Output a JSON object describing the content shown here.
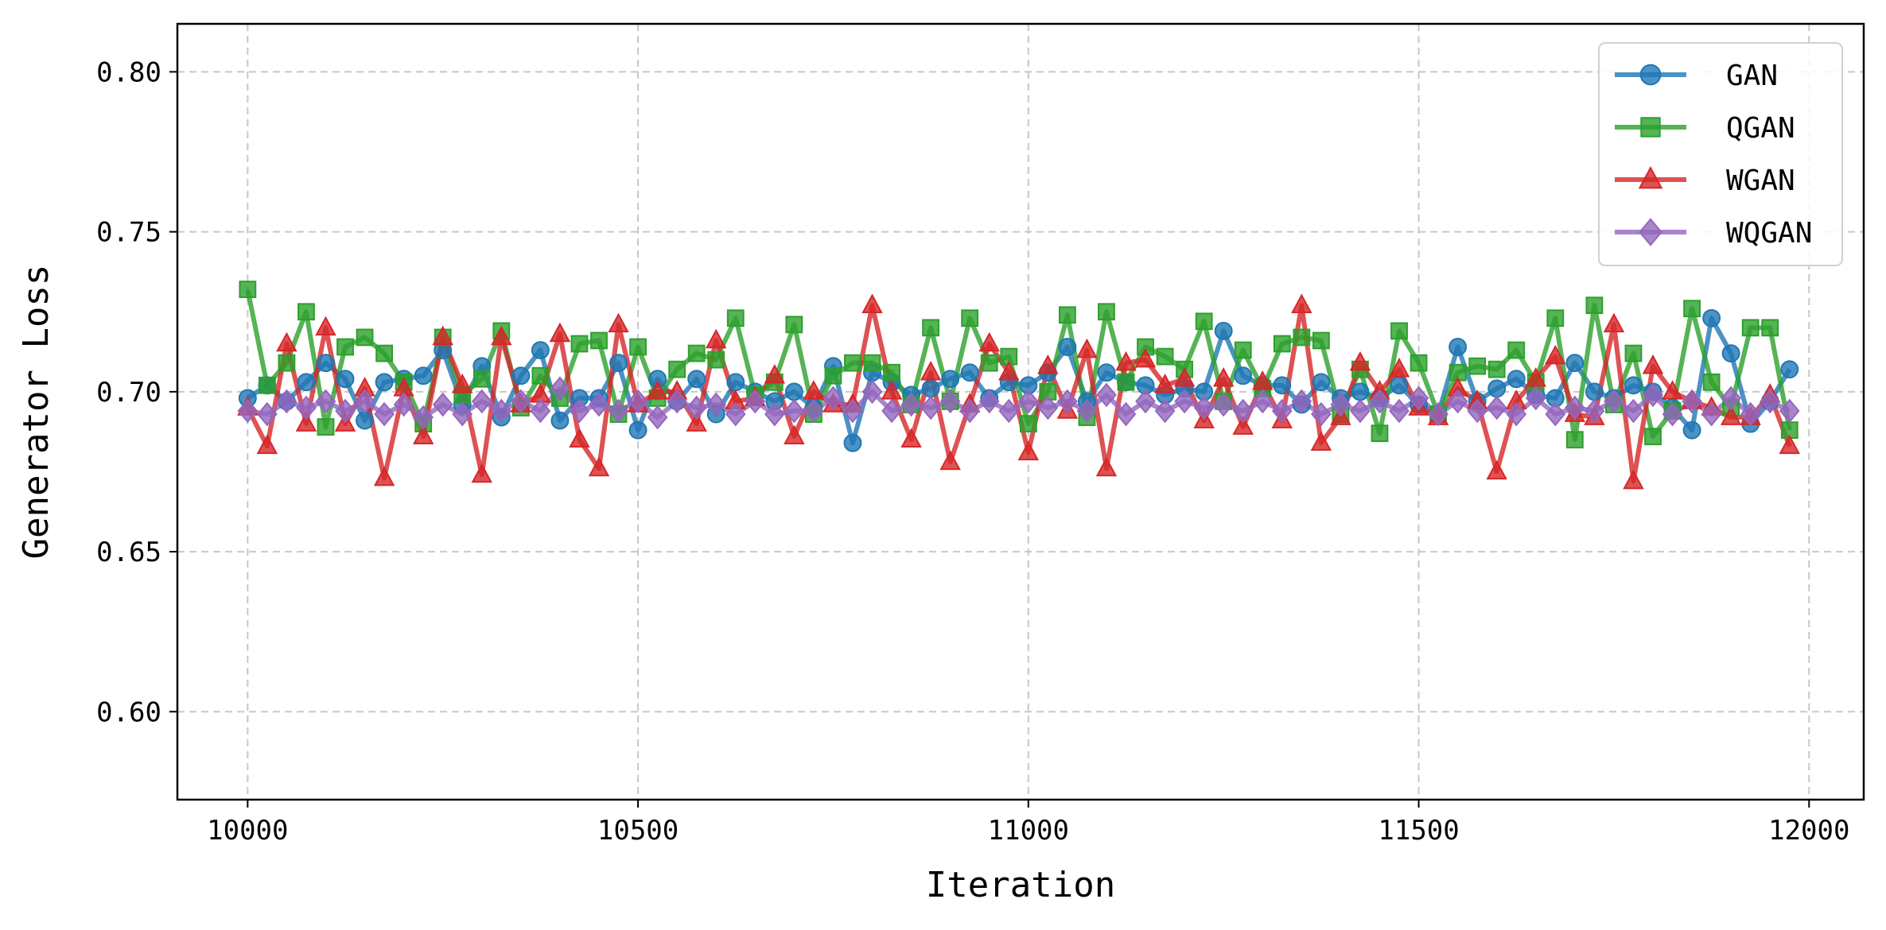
{
  "chart_data": {
    "type": "line",
    "xlabel": "Iteration",
    "ylabel": "Generator Loss",
    "xlim": [
      9910,
      12070
    ],
    "ylim": [
      0.5725,
      0.815
    ],
    "xticks": [
      10000,
      10500,
      11000,
      11500,
      12000
    ],
    "yticks": [
      0.6,
      0.65,
      0.7,
      0.75,
      0.8
    ],
    "grid": true,
    "legend_position": "top-right",
    "x": [
      10000,
      10025,
      10050,
      10075,
      10100,
      10125,
      10150,
      10175,
      10200,
      10225,
      10250,
      10275,
      10300,
      10325,
      10350,
      10375,
      10400,
      10425,
      10450,
      10475,
      10500,
      10525,
      10550,
      10575,
      10600,
      10625,
      10650,
      10675,
      10700,
      10725,
      10750,
      10775,
      10800,
      10825,
      10850,
      10875,
      10900,
      10925,
      10950,
      10975,
      11000,
      11025,
      11050,
      11075,
      11100,
      11125,
      11150,
      11175,
      11200,
      11225,
      11250,
      11275,
      11300,
      11325,
      11350,
      11375,
      11400,
      11425,
      11450,
      11475,
      11500,
      11525,
      11550,
      11575,
      11600,
      11625,
      11650,
      11675,
      11700,
      11725,
      11750,
      11775,
      11800,
      11825,
      11850,
      11875,
      11900,
      11925,
      11950,
      11975
    ],
    "series": [
      {
        "name": "GAN",
        "color": "#1f77b4",
        "marker": "circle",
        "values": [
          0.698,
          0.702,
          0.697,
          0.703,
          0.709,
          0.704,
          0.691,
          0.703,
          0.704,
          0.705,
          0.713,
          0.696,
          0.708,
          0.692,
          0.705,
          0.713,
          0.691,
          0.698,
          0.698,
          0.709,
          0.688,
          0.704,
          0.697,
          0.704,
          0.693,
          0.703,
          0.7,
          0.697,
          0.7,
          0.695,
          0.708,
          0.684,
          0.706,
          0.703,
          0.699,
          0.701,
          0.704,
          0.706,
          0.698,
          0.703,
          0.702,
          0.706,
          0.714,
          0.697,
          0.706,
          0.703,
          0.702,
          0.699,
          0.701,
          0.7,
          0.719,
          0.705,
          0.702,
          0.702,
          0.696,
          0.703,
          0.698,
          0.7,
          0.698,
          0.702,
          0.696,
          0.693,
          0.714,
          0.697,
          0.701,
          0.704,
          0.699,
          0.698,
          0.709,
          0.7,
          0.698,
          0.702,
          0.7,
          0.695,
          0.688,
          0.723,
          0.712,
          0.69,
          0.697,
          0.707
        ]
      },
      {
        "name": "QGAN",
        "color": "#2ca02c",
        "marker": "square",
        "values": [
          0.732,
          0.702,
          0.709,
          0.725,
          0.689,
          0.714,
          0.717,
          0.712,
          0.703,
          0.69,
          0.717,
          0.699,
          0.704,
          0.719,
          0.695,
          0.705,
          0.698,
          0.715,
          0.716,
          0.693,
          0.714,
          0.698,
          0.707,
          0.712,
          0.71,
          0.723,
          0.699,
          0.703,
          0.721,
          0.693,
          0.705,
          0.709,
          0.709,
          0.706,
          0.696,
          0.72,
          0.697,
          0.723,
          0.709,
          0.711,
          0.69,
          0.7,
          0.724,
          0.692,
          0.725,
          0.703,
          0.714,
          0.711,
          0.707,
          0.722,
          0.697,
          0.713,
          0.701,
          0.715,
          0.717,
          0.716,
          0.693,
          0.707,
          0.687,
          0.719,
          0.709,
          0.693,
          0.706,
          0.708,
          0.707,
          0.713,
          0.703,
          0.723,
          0.685,
          0.727,
          0.696,
          0.712,
          0.686,
          0.694,
          0.726,
          0.703,
          0.695,
          0.72,
          0.72,
          0.688
        ]
      },
      {
        "name": "WGAN",
        "color": "#d62728",
        "marker": "triangle",
        "values": [
          0.695,
          0.683,
          0.715,
          0.69,
          0.72,
          0.69,
          0.701,
          0.673,
          0.701,
          0.686,
          0.717,
          0.702,
          0.674,
          0.717,
          0.696,
          0.699,
          0.718,
          0.685,
          0.676,
          0.721,
          0.696,
          0.7,
          0.7,
          0.69,
          0.716,
          0.697,
          0.698,
          0.705,
          0.686,
          0.7,
          0.696,
          0.696,
          0.727,
          0.7,
          0.685,
          0.706,
          0.678,
          0.696,
          0.715,
          0.706,
          0.681,
          0.708,
          0.694,
          0.713,
          0.676,
          0.709,
          0.71,
          0.702,
          0.704,
          0.691,
          0.704,
          0.689,
          0.703,
          0.691,
          0.727,
          0.684,
          0.692,
          0.709,
          0.7,
          0.707,
          0.695,
          0.692,
          0.701,
          0.697,
          0.675,
          0.697,
          0.704,
          0.711,
          0.693,
          0.692,
          0.721,
          0.672,
          0.708,
          0.7,
          0.697,
          0.695,
          0.692,
          0.692,
          0.699,
          0.683
        ]
      },
      {
        "name": "WQGAN",
        "color": "#9467bd",
        "marker": "diamond",
        "values": [
          0.694,
          0.693,
          0.697,
          0.695,
          0.697,
          0.694,
          0.697,
          0.693,
          0.696,
          0.692,
          0.696,
          0.693,
          0.697,
          0.694,
          0.697,
          0.694,
          0.701,
          0.694,
          0.696,
          0.694,
          0.697,
          0.692,
          0.697,
          0.695,
          0.696,
          0.693,
          0.697,
          0.693,
          0.694,
          0.694,
          0.698,
          0.694,
          0.7,
          0.694,
          0.696,
          0.695,
          0.697,
          0.694,
          0.697,
          0.694,
          0.697,
          0.695,
          0.697,
          0.694,
          0.699,
          0.693,
          0.697,
          0.694,
          0.697,
          0.695,
          0.696,
          0.694,
          0.697,
          0.694,
          0.697,
          0.693,
          0.696,
          0.694,
          0.697,
          0.694,
          0.698,
          0.693,
          0.697,
          0.694,
          0.695,
          0.693,
          0.698,
          0.693,
          0.695,
          0.694,
          0.697,
          0.694,
          0.699,
          0.693,
          0.697,
          0.693,
          0.698,
          0.693,
          0.697,
          0.694
        ]
      }
    ]
  }
}
